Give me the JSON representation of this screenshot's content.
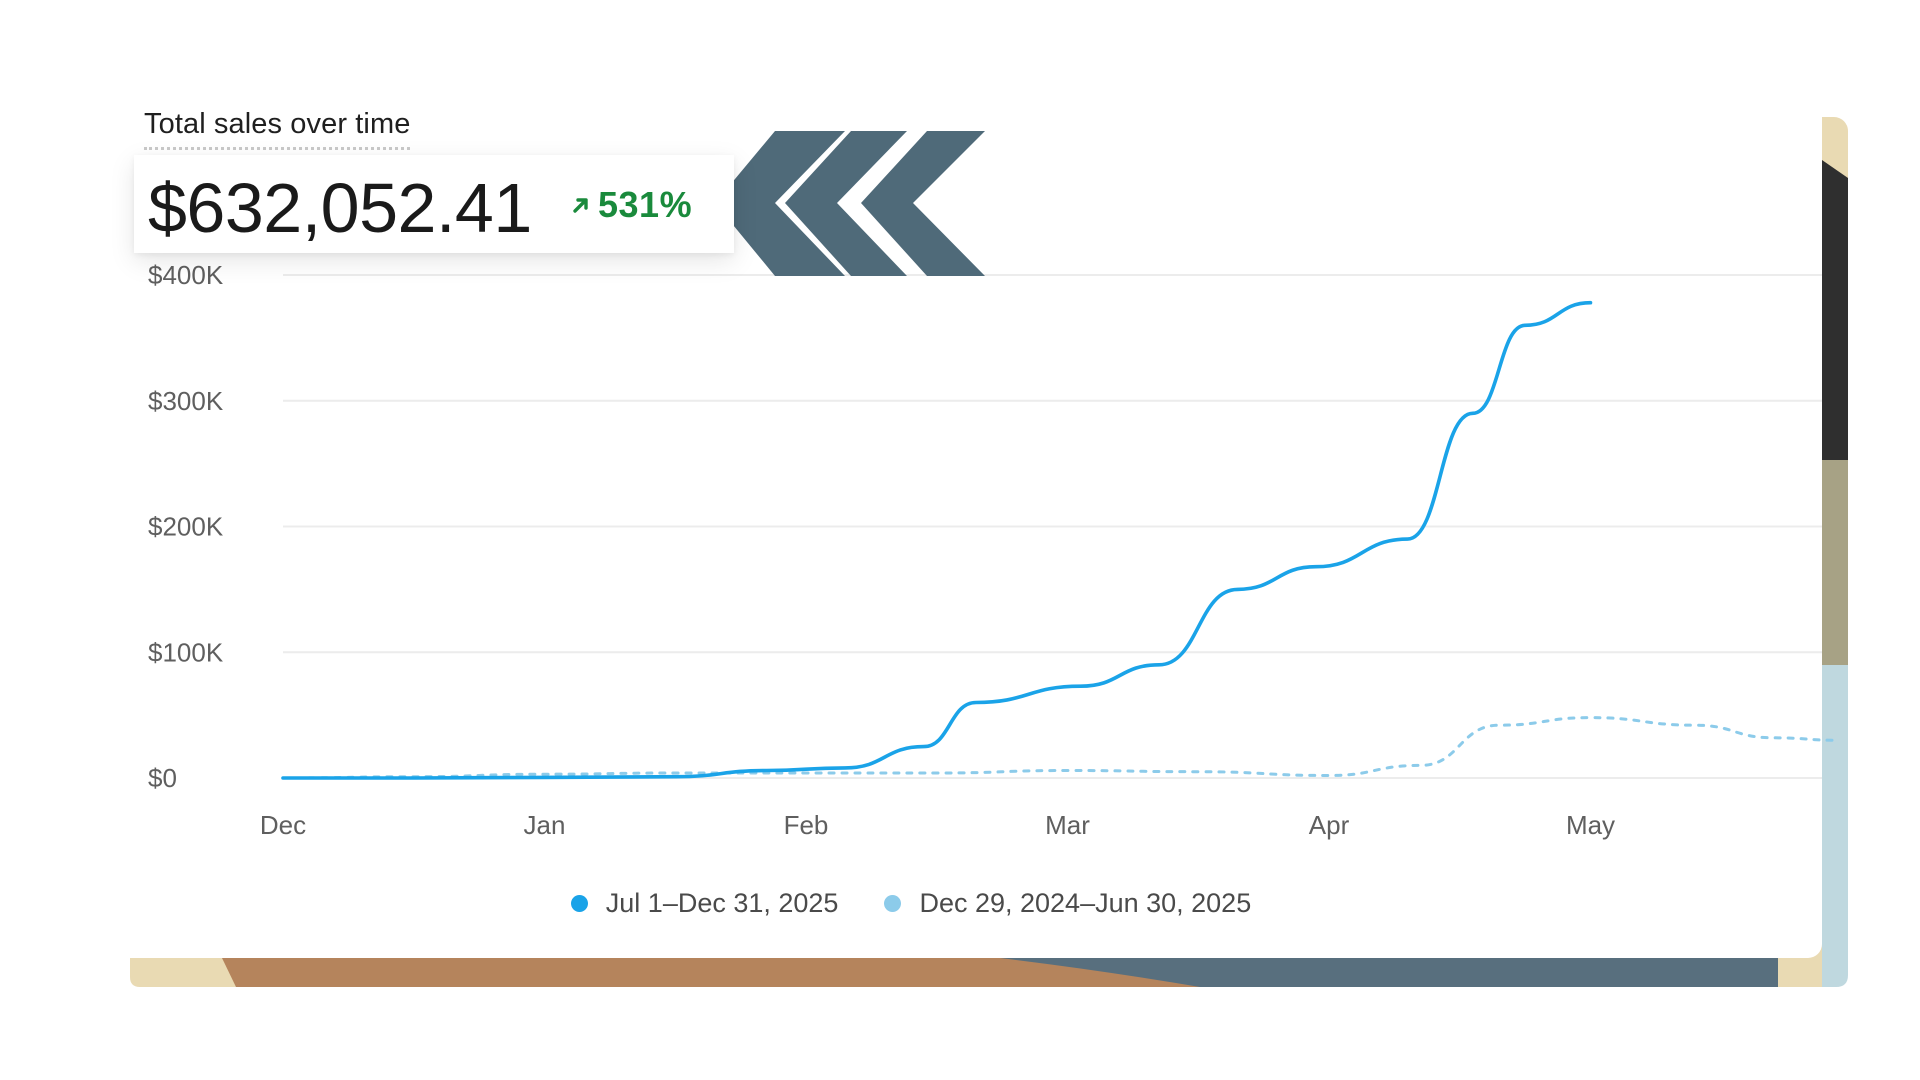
{
  "chart_data": {
    "type": "line",
    "title": "Total sales over time",
    "summary": {
      "total": "$632,052.41",
      "change": "531%",
      "change_direction": "up"
    },
    "x_ticks": [
      "Dec",
      "Jan",
      "Feb",
      "Mar",
      "Apr",
      "May"
    ],
    "y_ticks": [
      "$0",
      "$100K",
      "$200K",
      "$300K",
      "$400K"
    ],
    "ylim": [
      0,
      400000
    ],
    "grid": true,
    "legend_position": "bottom-center",
    "series": [
      {
        "name": "Jul 1–Dec 31, 2025",
        "color": "#1aa3e8",
        "style": "solid",
        "x": [
          0,
          0.5,
          1,
          1.5,
          1.85,
          2.15,
          2.45,
          2.65,
          3.05,
          3.35,
          3.65,
          3.95,
          4.3,
          4.55,
          4.75,
          5.0
        ],
        "y": [
          0,
          0,
          500,
          1000,
          6000,
          8000,
          25000,
          60000,
          73000,
          90000,
          150000,
          168000,
          190000,
          290000,
          360000,
          378000
        ]
      },
      {
        "name": "Dec 29, 2024–Jun 30, 2025",
        "color": "#8ccbea",
        "style": "dashed",
        "x": [
          0,
          0.5,
          1,
          1.5,
          2,
          2.5,
          3,
          3.5,
          4,
          4.35,
          4.65,
          5.0,
          5.4,
          5.7,
          5.95
        ],
        "y": [
          0,
          1000,
          3000,
          4000,
          4000,
          4000,
          6000,
          5000,
          2000,
          10000,
          42000,
          48000,
          42000,
          32000,
          30000
        ]
      }
    ]
  },
  "colors": {
    "grid": "#ececec",
    "axis_label": "#5f5f5f",
    "chevron": "#4f6a79",
    "backdrop_tan": "#b5845c",
    "backdrop_slate": "#586f7e",
    "backdrop_cream": "#e9dab3",
    "backdrop_olive": "#a7a285",
    "backdrop_dark": "#2f2f2f",
    "backdrop_ice": "#bfd8df"
  }
}
